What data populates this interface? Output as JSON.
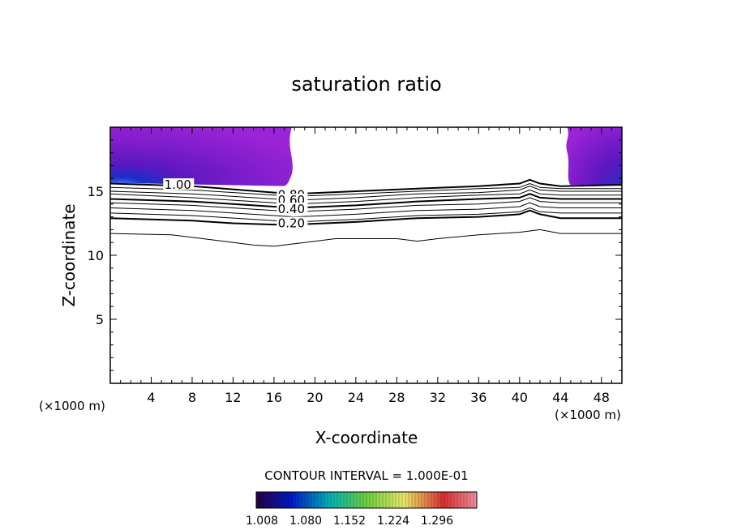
{
  "chart_data": {
    "type": "contour",
    "title": "saturation ratio",
    "xlabel": "X-coordinate",
    "ylabel": "Z-coordinate",
    "x_unit": "(×1000 m)",
    "y_unit": "(×1000 m)",
    "xlim": [
      0,
      50
    ],
    "ylim": [
      0,
      20
    ],
    "x_ticks": [
      4,
      8,
      12,
      16,
      20,
      24,
      28,
      32,
      36,
      40,
      44,
      48
    ],
    "y_ticks": [
      5,
      10,
      15
    ],
    "contour_labels": [
      {
        "text": "1.00",
        "x": 6.6,
        "z": 15.5
      },
      {
        "text": "0.80",
        "x": 17.7,
        "z": 14.7
      },
      {
        "text": "0.60",
        "x": 17.7,
        "z": 14.3
      },
      {
        "text": "0.40",
        "x": 17.7,
        "z": 13.6
      },
      {
        "text": "0.20",
        "x": 17.7,
        "z": 12.5
      }
    ],
    "contour_lines": [
      {
        "level": "1.00",
        "bold": true,
        "points": [
          [
            0,
            15.6
          ],
          [
            8,
            15.4
          ],
          [
            16,
            14.9
          ],
          [
            18,
            14.8
          ],
          [
            24,
            15.0
          ],
          [
            30,
            15.2
          ],
          [
            36,
            15.4
          ],
          [
            40,
            15.6
          ],
          [
            41,
            15.9
          ],
          [
            42,
            15.6
          ],
          [
            44,
            15.4
          ],
          [
            50,
            15.5
          ]
        ]
      },
      {
        "level": "0.90",
        "bold": false,
        "points": [
          [
            0,
            15.3
          ],
          [
            8,
            15.1
          ],
          [
            16,
            14.7
          ],
          [
            18,
            14.6
          ],
          [
            24,
            14.8
          ],
          [
            30,
            15.0
          ],
          [
            36,
            15.2
          ],
          [
            40,
            15.3
          ],
          [
            41,
            15.6
          ],
          [
            42,
            15.3
          ],
          [
            44,
            15.2
          ],
          [
            50,
            15.2
          ]
        ]
      },
      {
        "level": "0.80",
        "bold": false,
        "points": [
          [
            0,
            15.0
          ],
          [
            8,
            14.8
          ],
          [
            16,
            14.4
          ],
          [
            18,
            14.3
          ],
          [
            24,
            14.5
          ],
          [
            30,
            14.8
          ],
          [
            36,
            14.9
          ],
          [
            40,
            15.1
          ],
          [
            41,
            15.4
          ],
          [
            42,
            15.1
          ],
          [
            44,
            15.0
          ],
          [
            50,
            15.0
          ]
        ]
      },
      {
        "level": "0.70",
        "bold": false,
        "points": [
          [
            0,
            14.8
          ],
          [
            8,
            14.5
          ],
          [
            16,
            14.1
          ],
          [
            18,
            14.0
          ],
          [
            24,
            14.2
          ],
          [
            30,
            14.5
          ],
          [
            36,
            14.7
          ],
          [
            40,
            14.8
          ],
          [
            41,
            15.1
          ],
          [
            42,
            14.8
          ],
          [
            44,
            14.7
          ],
          [
            50,
            14.7
          ]
        ]
      },
      {
        "level": "0.60",
        "bold": true,
        "points": [
          [
            0,
            14.4
          ],
          [
            8,
            14.2
          ],
          [
            16,
            13.8
          ],
          [
            18,
            13.7
          ],
          [
            24,
            13.9
          ],
          [
            30,
            14.2
          ],
          [
            36,
            14.4
          ],
          [
            40,
            14.5
          ],
          [
            41,
            14.8
          ],
          [
            42,
            14.5
          ],
          [
            44,
            14.4
          ],
          [
            50,
            14.4
          ]
        ]
      },
      {
        "level": "0.50",
        "bold": false,
        "points": [
          [
            0,
            14.1
          ],
          [
            8,
            13.9
          ],
          [
            16,
            13.5
          ],
          [
            18,
            13.4
          ],
          [
            24,
            13.6
          ],
          [
            30,
            13.9
          ],
          [
            36,
            14.0
          ],
          [
            40,
            14.2
          ],
          [
            41,
            14.5
          ],
          [
            42,
            14.2
          ],
          [
            44,
            14.1
          ],
          [
            50,
            14.1
          ]
        ]
      },
      {
        "level": "0.40",
        "bold": false,
        "points": [
          [
            0,
            13.7
          ],
          [
            8,
            13.5
          ],
          [
            16,
            13.1
          ],
          [
            18,
            13.0
          ],
          [
            24,
            13.2
          ],
          [
            30,
            13.5
          ],
          [
            36,
            13.6
          ],
          [
            40,
            13.8
          ],
          [
            41,
            14.1
          ],
          [
            42,
            13.8
          ],
          [
            44,
            13.7
          ],
          [
            50,
            13.7
          ]
        ]
      },
      {
        "level": "0.30",
        "bold": false,
        "points": [
          [
            0,
            13.3
          ],
          [
            8,
            13.1
          ],
          [
            16,
            12.7
          ],
          [
            18,
            12.6
          ],
          [
            24,
            12.8
          ],
          [
            30,
            13.1
          ],
          [
            36,
            13.2
          ],
          [
            40,
            13.4
          ],
          [
            41,
            13.7
          ],
          [
            42,
            13.4
          ],
          [
            44,
            13.3
          ],
          [
            50,
            13.3
          ]
        ]
      },
      {
        "level": "0.20",
        "bold": true,
        "points": [
          [
            0,
            12.9
          ],
          [
            8,
            12.7
          ],
          [
            12,
            12.5
          ],
          [
            16,
            12.4
          ],
          [
            18,
            12.4
          ],
          [
            24,
            12.6
          ],
          [
            30,
            12.9
          ],
          [
            36,
            13.0
          ],
          [
            40,
            13.2
          ],
          [
            41,
            13.5
          ],
          [
            42,
            13.2
          ],
          [
            44,
            12.9
          ],
          [
            50,
            12.9
          ]
        ]
      },
      {
        "level": "0.10",
        "bold": false,
        "points": [
          [
            0,
            11.7
          ],
          [
            6,
            11.6
          ],
          [
            10,
            11.2
          ],
          [
            14,
            10.8
          ],
          [
            16,
            10.7
          ],
          [
            18,
            10.9
          ],
          [
            22,
            11.3
          ],
          [
            28,
            11.3
          ],
          [
            30,
            11.1
          ],
          [
            32,
            11.3
          ],
          [
            36,
            11.6
          ],
          [
            40,
            11.8
          ],
          [
            42,
            12.0
          ],
          [
            44,
            11.7
          ],
          [
            50,
            11.7
          ]
        ]
      }
    ],
    "filled_regions": [
      {
        "side": "left",
        "x_range": [
          0,
          17.9
        ],
        "z_range": [
          15.4,
          20
        ],
        "color": "#8a1ed0"
      },
      {
        "side": "right",
        "x_range": [
          44.5,
          50
        ],
        "z_range": [
          15.5,
          20
        ],
        "color": "#8a1ed0"
      }
    ],
    "contour_interval_text": "CONTOUR INTERVAL = 1.000E-01",
    "colorbar": {
      "tick_labels": [
        "1.008",
        "1.080",
        "1.152",
        "1.224",
        "1.296"
      ],
      "colors": [
        "#2a0040",
        "#0018c8",
        "#00b0b8",
        "#6ad040",
        "#e8e868",
        "#d83030",
        "#f090a0"
      ]
    }
  }
}
